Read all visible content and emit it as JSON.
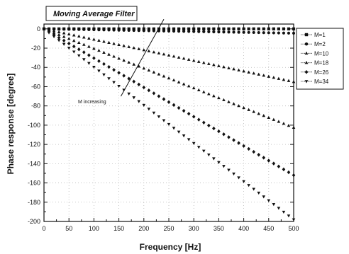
{
  "chart_data": {
    "type": "scatter",
    "title": "Moving Average Filter",
    "xlabel": "Frequency [Hz]",
    "ylabel": "Phase response [degree]",
    "xlim": [
      0,
      500
    ],
    "ylim": [
      -200,
      5
    ],
    "grid": true,
    "legend_position": "top-right",
    "x_ticks": [
      0,
      50,
      100,
      150,
      200,
      250,
      300,
      350,
      400,
      450,
      500
    ],
    "y_ticks": [
      0,
      -20,
      -40,
      -60,
      -80,
      -100,
      -120,
      -140,
      -160,
      -180,
      -200
    ],
    "x_tick_labels": [
      "0",
      "50",
      "100",
      "150",
      "200",
      "250",
      "300",
      "350",
      "400",
      "450",
      "500"
    ],
    "y_tick_labels": [
      "0",
      "-20",
      "-40",
      "-60",
      "-80",
      "-100",
      "-120",
      "-140",
      "-160",
      "-180",
      "-200"
    ],
    "series": [
      {
        "name": "M=1",
        "marker": "square",
        "slope": 0
      },
      {
        "name": "M=2",
        "marker": "circle",
        "slope": -0.009
      },
      {
        "name": "M=10",
        "marker": "triangle-up",
        "slope": -0.11
      },
      {
        "name": "M=18",
        "marker": "triangle-up",
        "slope": -0.205
      },
      {
        "name": "M=26",
        "marker": "diamond",
        "slope": -0.304
      },
      {
        "name": "M=34",
        "marker": "triangle-down",
        "slope": -0.396
      }
    ],
    "x_samples": {
      "start": 0,
      "end": 500,
      "step": 10
    },
    "annotation": {
      "text": "M increasing",
      "line_x": [
        154,
        240
      ],
      "line_y": [
        -70,
        10
      ]
    }
  }
}
